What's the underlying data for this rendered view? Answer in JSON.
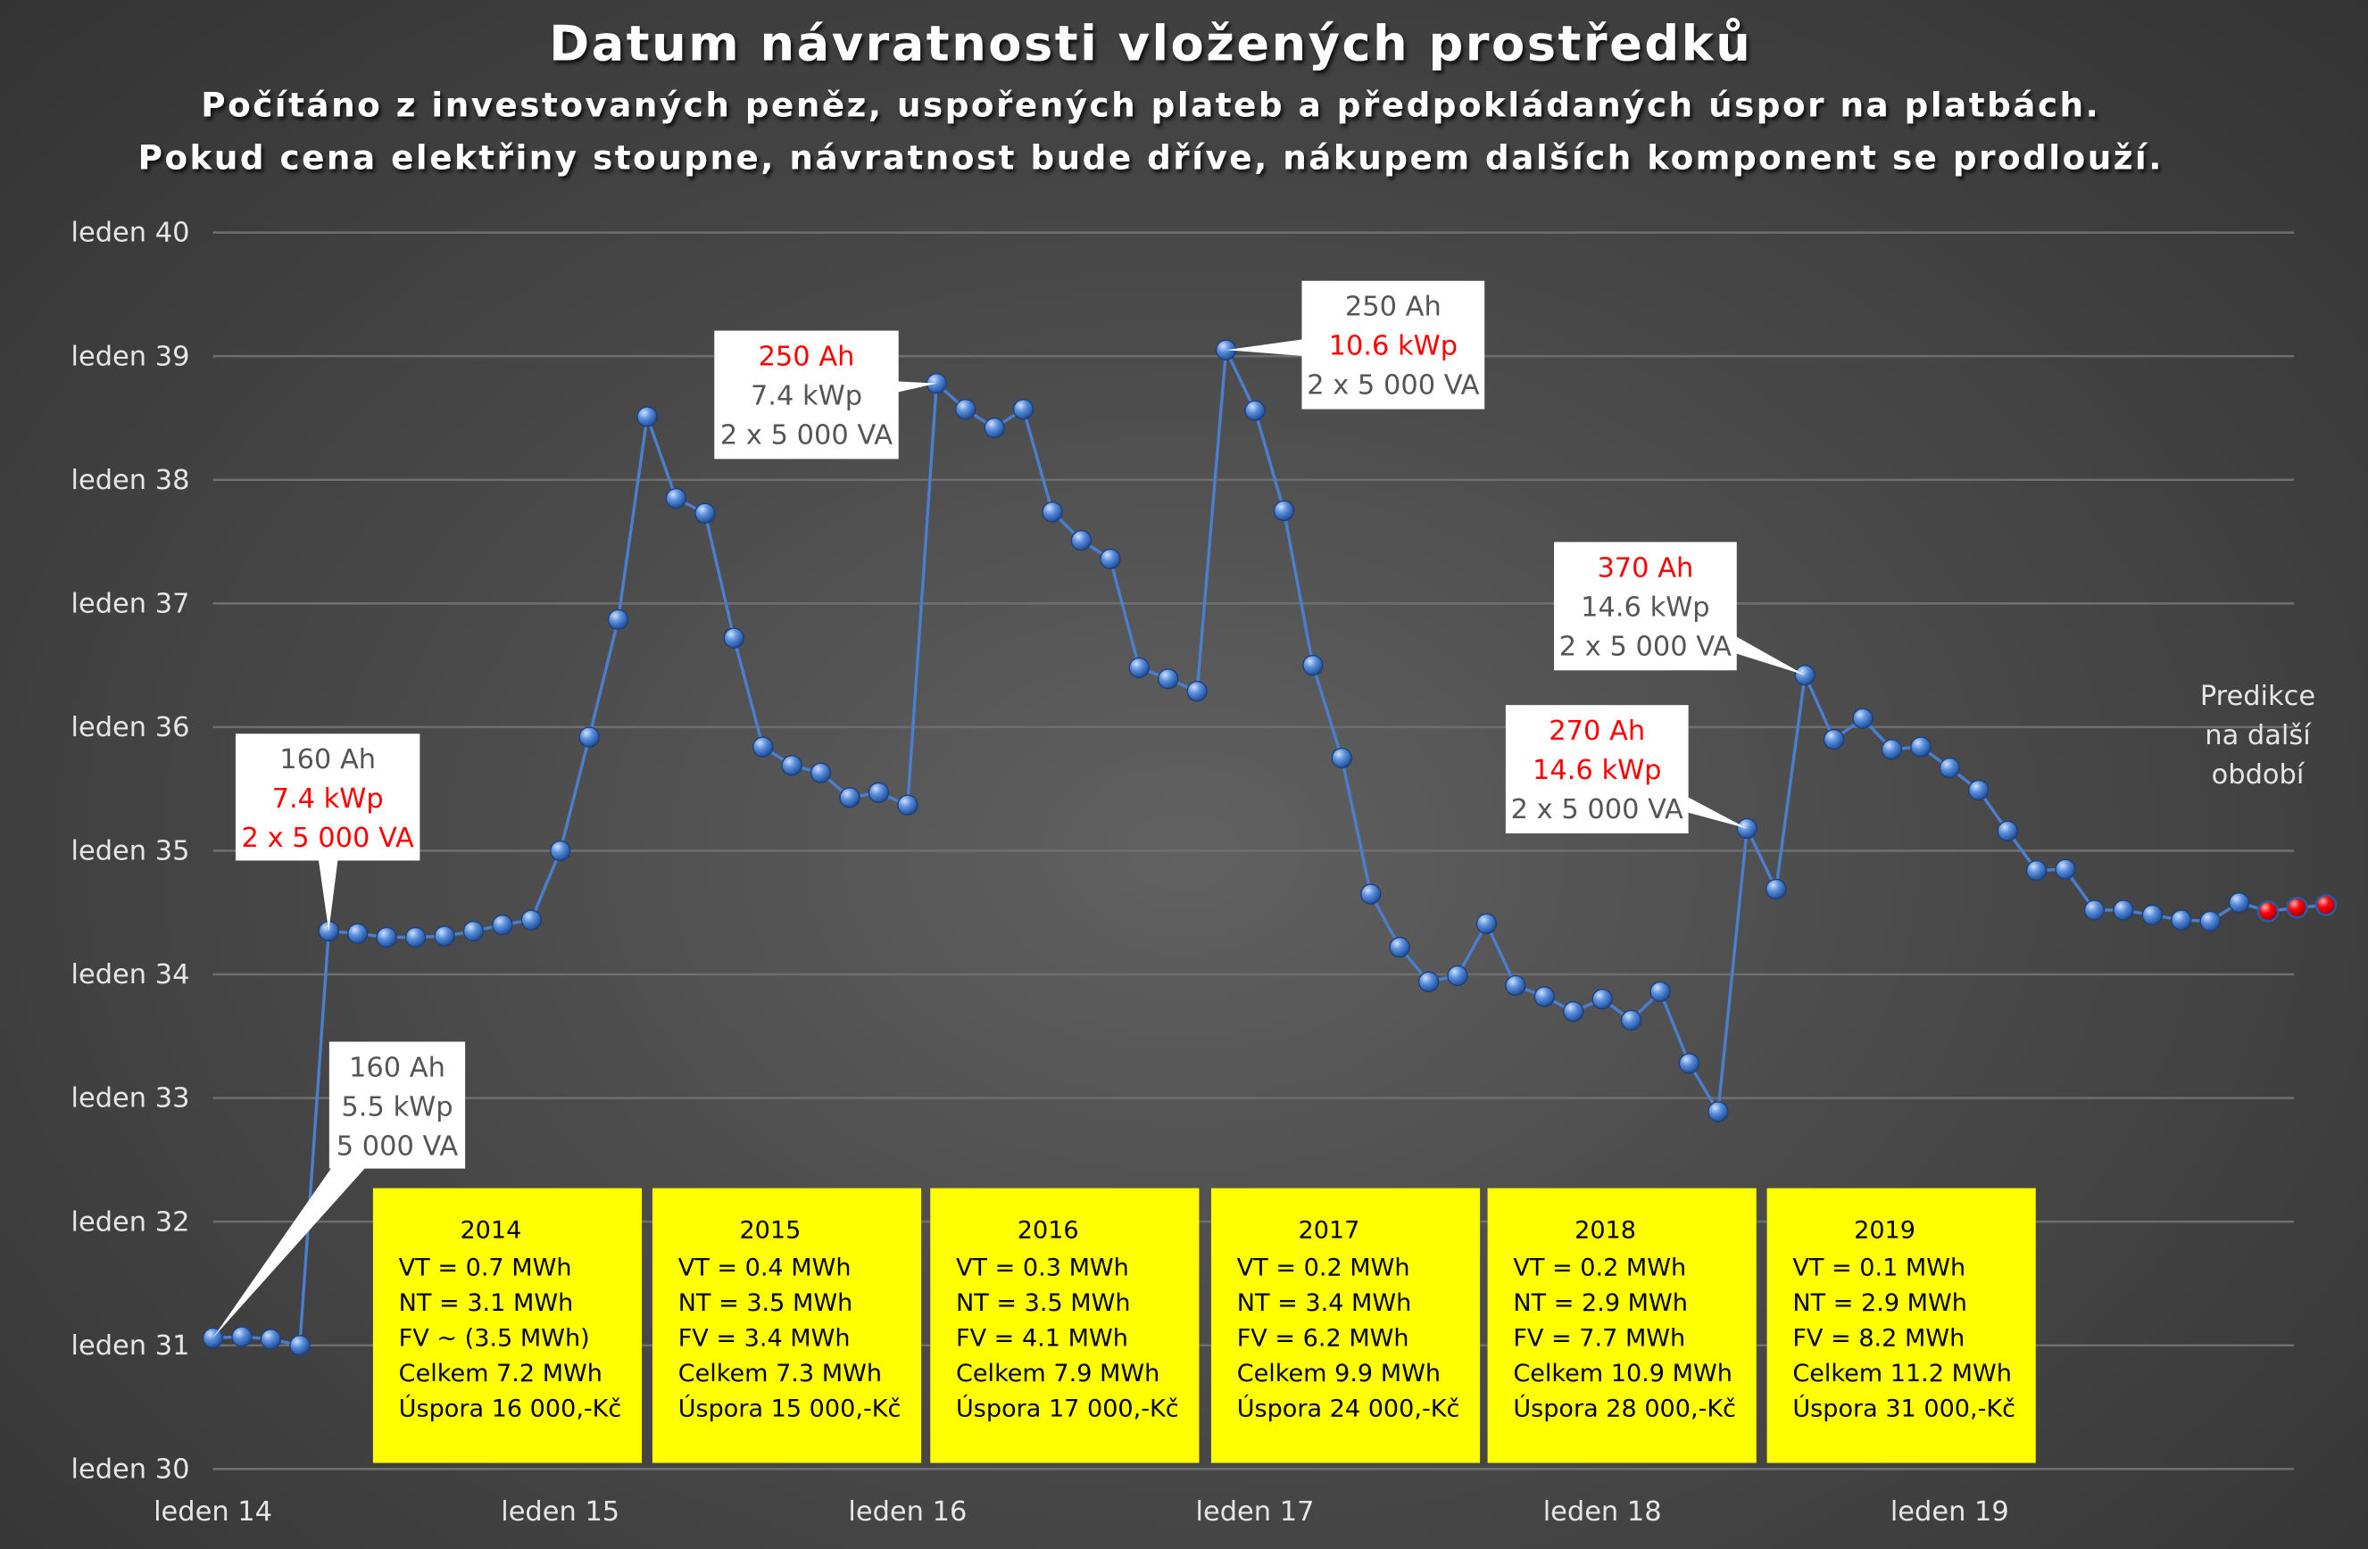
{
  "chart_data": {
    "type": "line",
    "title": "Datum návratnosti vložených prostředků",
    "subtitle": [
      "Počítáno z investovaných peněz, uspořených plateb a předpokládaných úspor na platbách.",
      "Pokud cena elektřiny stoupne, návratnost bude dříve, nákupem dalších komponent se prodlouží."
    ],
    "xlabel": "",
    "ylabel": "",
    "x_unit": "months since leden 2014",
    "y_unit": "payback year (30 = leden 2030)",
    "xlim": [
      0,
      72
    ],
    "ylim": [
      30,
      40
    ],
    "grid": true,
    "x_ticks": [
      {
        "value": 0,
        "label": "leden 14"
      },
      {
        "value": 12,
        "label": "leden 15"
      },
      {
        "value": 24,
        "label": "leden 16"
      },
      {
        "value": 36,
        "label": "leden 17"
      },
      {
        "value": 48,
        "label": "leden 18"
      },
      {
        "value": 60,
        "label": "leden 19"
      }
    ],
    "y_ticks": [
      {
        "value": 30,
        "label": "leden 30"
      },
      {
        "value": 31,
        "label": "leden 31"
      },
      {
        "value": 32,
        "label": "leden 32"
      },
      {
        "value": 33,
        "label": "leden 33"
      },
      {
        "value": 34,
        "label": "leden 34"
      },
      {
        "value": 35,
        "label": "leden 35"
      },
      {
        "value": 36,
        "label": "leden 36"
      },
      {
        "value": 37,
        "label": "leden 37"
      },
      {
        "value": 38,
        "label": "leden 38"
      },
      {
        "value": 39,
        "label": "leden 39"
      },
      {
        "value": 40,
        "label": "leden 40"
      }
    ],
    "series": [
      {
        "name": "actual",
        "color": "#4a7fd0",
        "values": [
          31.06,
          31.07,
          31.05,
          31.0,
          34.35,
          34.33,
          34.3,
          34.3,
          34.31,
          34.35,
          34.4,
          34.44,
          35.0,
          35.92,
          36.87,
          38.51,
          37.85,
          37.73,
          36.72,
          35.84,
          35.69,
          35.63,
          35.43,
          35.47,
          35.37,
          38.78,
          38.57,
          38.42,
          38.57,
          37.74,
          37.51,
          37.36,
          36.48,
          36.39,
          36.29,
          39.05,
          38.56,
          37.75,
          36.5,
          35.75,
          34.65,
          34.22,
          33.94,
          33.99,
          34.41,
          33.91,
          33.82,
          33.7,
          33.8,
          33.63,
          33.86,
          33.28,
          32.89,
          35.18,
          34.69,
          36.42,
          35.9,
          36.07,
          35.82,
          35.84,
          35.67,
          35.49,
          35.16,
          34.84,
          34.85,
          34.52,
          34.52,
          34.48,
          34.44,
          34.43,
          34.58
        ]
      },
      {
        "name": "prediction",
        "color": "#e00000",
        "start": 71,
        "values": [
          34.51,
          34.54,
          34.56
        ]
      }
    ],
    "prediction_label": [
      "Predikce",
      "na další",
      "období"
    ],
    "annotations": [
      {
        "point": 0,
        "lines": [
          {
            "t": "160 Ah",
            "c": "#555555"
          },
          {
            "t": "5.5 kWp",
            "c": "#555555"
          },
          {
            "t": "5 000 VA",
            "c": "#555555"
          }
        ]
      },
      {
        "point": 4,
        "lines": [
          {
            "t": "160 Ah",
            "c": "#555555"
          },
          {
            "t": "7.4 kWp",
            "c": "#ff0000"
          },
          {
            "t": "2 x 5 000 VA",
            "c": "#ff0000"
          }
        ]
      },
      {
        "point": 25,
        "lines": [
          {
            "t": "250 Ah",
            "c": "#ff0000"
          },
          {
            "t": "7.4 kWp",
            "c": "#555555"
          },
          {
            "t": "2 x 5 000 VA",
            "c": "#555555"
          }
        ]
      },
      {
        "point": 35,
        "lines": [
          {
            "t": "250 Ah",
            "c": "#555555"
          },
          {
            "t": "10.6 kWp",
            "c": "#ff0000"
          },
          {
            "t": "2 x 5 000 VA",
            "c": "#555555"
          }
        ]
      },
      {
        "point": 55,
        "lines": [
          {
            "t": "370 Ah",
            "c": "#ff0000"
          },
          {
            "t": "14.6 kWp",
            "c": "#555555"
          },
          {
            "t": "2 x 5 000 VA",
            "c": "#555555"
          }
        ]
      },
      {
        "point": 53,
        "lines": [
          {
            "t": "270 Ah",
            "c": "#ff0000"
          },
          {
            "t": "14.6 kWp",
            "c": "#ff0000"
          },
          {
            "t": "2 x 5 000 VA",
            "c": "#555555"
          }
        ]
      }
    ],
    "yearly_boxes": [
      {
        "year": "2014",
        "lines": [
          "VT = 0.7 MWh",
          "NT = 3.1 MWh",
          "FV ~ (3.5 MWh)",
          "Celkem 7.2 MWh",
          "Úspora 16 000,-Kč"
        ]
      },
      {
        "year": "2015",
        "lines": [
          "VT = 0.4 MWh",
          "NT = 3.5 MWh",
          "FV = 3.4 MWh",
          "Celkem 7.3 MWh",
          "Úspora 15 000,-Kč"
        ]
      },
      {
        "year": "2016",
        "lines": [
          "VT = 0.3 MWh",
          "NT = 3.5 MWh",
          "FV = 4.1 MWh",
          "Celkem 7.9 MWh",
          "Úspora 17 000,-Kč"
        ]
      },
      {
        "year": "2017",
        "lines": [
          "VT = 0.2 MWh",
          "NT = 3.4 MWh",
          "FV = 6.2 MWh",
          "Celkem 9.9 MWh",
          "Úspora 24 000,-Kč"
        ]
      },
      {
        "year": "2018",
        "lines": [
          "VT = 0.2 MWh",
          "NT = 2.9 MWh",
          "FV = 7.7 MWh",
          "Celkem 10.9 MWh",
          "Úspora 28 000,-Kč"
        ]
      },
      {
        "year": "2019",
        "lines": [
          "VT = 0.1 MWh",
          "NT = 2.9 MWh",
          "FV = 8.2 MWh",
          "Celkem 11.2 MWh",
          "Úspora 31 000,-Kč"
        ]
      }
    ],
    "box_color": "#ffff00"
  }
}
